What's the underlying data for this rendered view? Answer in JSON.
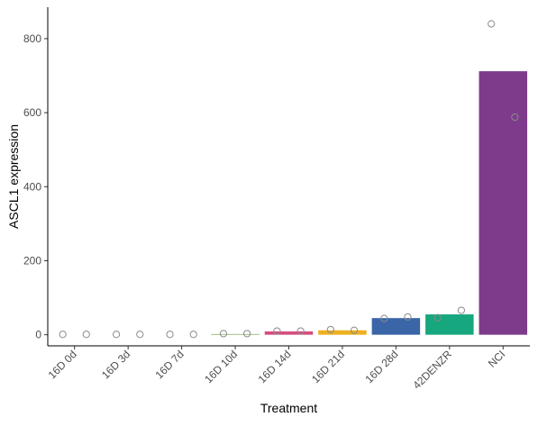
{
  "chart_data": {
    "type": "bar",
    "title": "",
    "xlabel": "Treatment",
    "ylabel": "ASCL1 expression",
    "ylim": [
      -30,
      885
    ],
    "y_ticks": [
      0,
      200,
      400,
      600,
      800
    ],
    "grid": false,
    "legend": "none",
    "categories": [
      "16D 0d",
      "16D 3d",
      "16D 7d",
      "16D 10d",
      "16D 14d",
      "16D 21d",
      "16D 28d",
      "42DENZR",
      "NCI"
    ],
    "values": [
      0,
      0,
      0,
      2,
      9,
      12,
      45,
      55,
      712
    ],
    "colors": [
      "#000000",
      "#000000",
      "#000000",
      "#8CB369",
      "#D64D7F",
      "#EDB020",
      "#3A66A8",
      "#17A77E",
      "#7E3B8C"
    ],
    "points": [
      [
        1,
        1
      ],
      [
        1,
        1
      ],
      [
        1,
        1
      ],
      [
        3,
        3
      ],
      [
        10,
        10
      ],
      [
        14,
        12
      ],
      [
        44,
        48
      ],
      [
        46,
        66
      ],
      [
        840,
        588
      ]
    ]
  }
}
